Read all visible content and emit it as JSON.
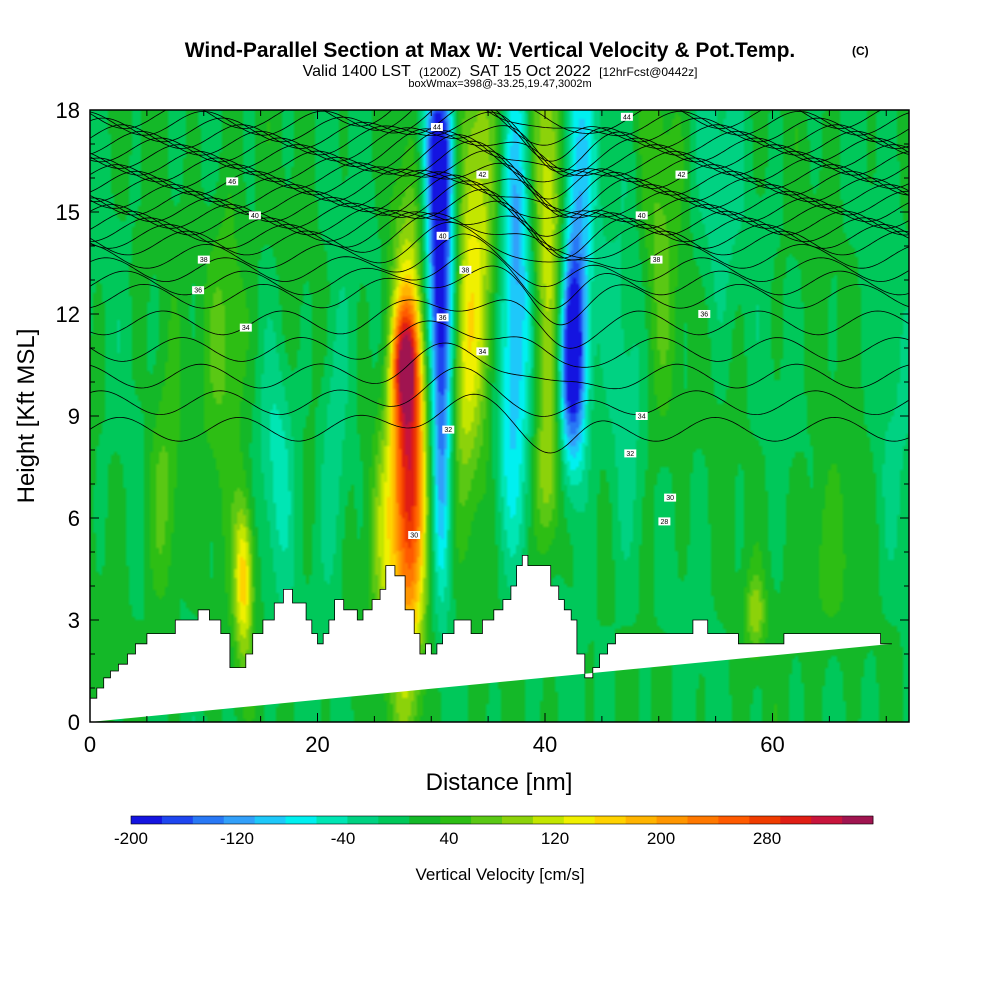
{
  "chart_data": {
    "type": "heatmap",
    "title": "Wind-Parallel Section at Max W: Vertical Velocity & Pot.Temp.",
    "title_mark": "(C)",
    "subtitle_prefix": "Valid 1400 LST",
    "subtitle_utc": "(1200Z)",
    "subtitle_date": "SAT 15 Oct 2022",
    "subtitle_fcst": "[12hrFcst@0442z]",
    "subtitle2": "boxWmax=398@-33.25,19.47,3002m",
    "xlabel": "Distance [nm]",
    "ylabel": "Height [Kft MSL]",
    "xlim": [
      0,
      72
    ],
    "ylim": [
      0,
      18
    ],
    "xticks": [
      "0",
      "20",
      "40",
      "60"
    ],
    "xtick_values": [
      0,
      20,
      40,
      60
    ],
    "yticks": [
      "0",
      "3",
      "6",
      "9",
      "12",
      "15",
      "18"
    ],
    "ytick_values": [
      0,
      3,
      6,
      9,
      12,
      15,
      18
    ],
    "colorbar": {
      "label": "Vertical Velocity [cm/s]",
      "min": -200,
      "max": 360,
      "tick_labels": [
        "-200",
        "-120",
        "-40",
        "40",
        "120",
        "200",
        "280"
      ],
      "tick_values": [
        -200,
        -120,
        -40,
        40,
        120,
        200,
        280
      ],
      "colors": [
        "#1414e0",
        "#1e46f0",
        "#2878f5",
        "#32a0fa",
        "#1ec8fa",
        "#00f0f0",
        "#00e6b4",
        "#00d282",
        "#00c85a",
        "#14b828",
        "#2dbe14",
        "#5ac814",
        "#8cd20a",
        "#c3e600",
        "#f0f000",
        "#ffd200",
        "#ffb400",
        "#ff9600",
        "#ff7800",
        "#ff5a00",
        "#f03c00",
        "#e01e14",
        "#c8143c",
        "#a01450"
      ]
    },
    "terrain": {
      "x": [
        0,
        0.6,
        0.6,
        1.2,
        1.2,
        1.8,
        1.8,
        2.5,
        2.5,
        3.3,
        3.3,
        4,
        4,
        5,
        5,
        6,
        6,
        7.5,
        7.5,
        9.5,
        9.5,
        10.5,
        10.5,
        11.5,
        11.5,
        12.3,
        12.3,
        13.7,
        13.7,
        14.3,
        14.3,
        15.2,
        15.2,
        16.2,
        16.2,
        17,
        17,
        17.8,
        17.8,
        19,
        19,
        19.5,
        19.5,
        20,
        20,
        20.5,
        20.5,
        21,
        21,
        21.5,
        21.5,
        22.3,
        22.3,
        23.5,
        23.5,
        24,
        24,
        24.8,
        24.8,
        25.5,
        25.5,
        26,
        26,
        26.8,
        26.8,
        27.7,
        27.7,
        28.5,
        28.5,
        29,
        29,
        29.5,
        29.5,
        30,
        30,
        30.5,
        30.5,
        31,
        31,
        31.5,
        31.5,
        32,
        32,
        33,
        33,
        33.5,
        33.5,
        34.5,
        34.5,
        35.5,
        35.5,
        36.3,
        36.3,
        37,
        37,
        37.5,
        37.5,
        38,
        38,
        38.5,
        38.5,
        40.5,
        40.5,
        41.2,
        41.2,
        41.7,
        41.7,
        42.3,
        42.3,
        42.8,
        42.8,
        43.5,
        43.5,
        44.2,
        44.2,
        44.8,
        44.8,
        45.5,
        45.5,
        46.2,
        46.2,
        48,
        48,
        53,
        53,
        54.3,
        54.3,
        55.5,
        55.5,
        57,
        57,
        58.5,
        58.5,
        61,
        61,
        66,
        66,
        69.5,
        69.5,
        70.5,
        70.5,
        72
      ],
      "y": [
        0.7,
        0.7,
        1,
        1,
        1.3,
        1.3,
        1.5,
        1.5,
        1.7,
        1.7,
        2,
        2,
        2.3,
        2.3,
        2.6,
        2.6,
        2.6,
        2.6,
        3,
        3,
        3.3,
        3.3,
        3,
        3,
        2.6,
        2.6,
        1.6,
        1.6,
        2,
        2,
        2.6,
        2.6,
        3,
        3,
        3.5,
        3.5,
        3.9,
        3.9,
        3.5,
        3.5,
        3,
        3,
        2.6,
        2.6,
        2.3,
        2.3,
        2.6,
        2.6,
        3,
        3,
        3.6,
        3.6,
        3.3,
        3.3,
        3,
        3,
        3.3,
        3.3,
        3.6,
        3.6,
        3.9,
        3.9,
        4.6,
        4.6,
        4.3,
        4.3,
        3.3,
        3.3,
        2.6,
        2.6,
        2,
        2,
        2.3,
        2.3,
        2,
        2,
        2.3,
        2.3,
        2.6,
        2.6,
        2.6,
        2.6,
        3,
        3,
        3,
        3,
        2.6,
        2.6,
        3,
        3,
        3.3,
        3.3,
        3.6,
        3.6,
        4,
        4,
        4.6,
        4.6,
        4.9,
        4.9,
        4.6,
        4.6,
        4,
        4,
        3.6,
        3.6,
        3.3,
        3.3,
        3,
        3,
        2,
        2,
        1.3,
        1.3,
        1.6,
        1.6,
        2,
        2,
        2.3,
        2.3,
        2.6,
        2.6,
        2.6,
        2.6,
        3,
        3,
        2.6,
        2.6,
        2.6,
        2.6,
        2.3,
        2.3,
        2.3,
        2.3,
        2.6,
        2.6,
        2.6,
        2.6,
        2.3,
        2.3,
        2.3
      ]
    },
    "w_features": [
      {
        "x": 28,
        "y": 7.5,
        "sx": 1.1,
        "sy": 4.2,
        "amp": 310
      },
      {
        "x": 27.7,
        "y": 10.6,
        "sx": 0.8,
        "sy": 1.1,
        "amp": 160
      },
      {
        "x": 25.8,
        "y": 5.6,
        "sx": 0.9,
        "sy": 2.5,
        "amp": 70
      },
      {
        "x": 30.8,
        "y": 13.1,
        "sx": 0.9,
        "sy": 3.0,
        "amp": -230
      },
      {
        "x": 30.9,
        "y": 7.5,
        "sx": 0.6,
        "sy": 2.8,
        "amp": -110
      },
      {
        "x": 30.6,
        "y": 17.0,
        "sx": 1.0,
        "sy": 1.5,
        "amp": -140
      },
      {
        "x": 34.0,
        "y": 14.5,
        "sx": 1.4,
        "sy": 4.5,
        "amp": 120
      },
      {
        "x": 32.8,
        "y": 10.5,
        "sx": 0.8,
        "sy": 2.5,
        "amp": 70
      },
      {
        "x": 37.5,
        "y": 14.0,
        "sx": 1.0,
        "sy": 4.5,
        "amp": -130
      },
      {
        "x": 40.5,
        "y": 15.0,
        "sx": 1.2,
        "sy": 4.0,
        "amp": 120
      },
      {
        "x": 40.2,
        "y": 7.3,
        "sx": 0.8,
        "sy": 1.8,
        "amp": 90
      },
      {
        "x": 42.4,
        "y": 10.6,
        "sx": 0.85,
        "sy": 2.2,
        "amp": -230
      },
      {
        "x": 42.7,
        "y": 15.5,
        "sx": 1.1,
        "sy": 3.5,
        "amp": -120
      },
      {
        "x": 13.5,
        "y": 4.2,
        "sx": 0.6,
        "sy": 1.6,
        "amp": 150
      },
      {
        "x": 16.5,
        "y": 7.5,
        "sx": 1.0,
        "sy": 2.5,
        "amp": -50
      },
      {
        "x": 6.5,
        "y": 6.5,
        "sx": 1.0,
        "sy": 2.5,
        "amp": 60
      },
      {
        "x": 12.0,
        "y": 11.5,
        "sx": 1.3,
        "sy": 3.0,
        "amp": 60
      },
      {
        "x": 21.5,
        "y": 8.0,
        "sx": 0.9,
        "sy": 3.0,
        "amp": -50
      },
      {
        "x": 36.5,
        "y": 7.5,
        "sx": 1.0,
        "sy": 2.5,
        "amp": -45
      },
      {
        "x": 47.0,
        "y": 9.0,
        "sx": 1.5,
        "sy": 4.0,
        "amp": -35
      },
      {
        "x": 50.0,
        "y": 13.0,
        "sx": 1.2,
        "sy": 4.0,
        "amp": 55
      },
      {
        "x": 55.0,
        "y": 15.5,
        "sx": 1.5,
        "sy": 3.0,
        "amp": -35
      },
      {
        "x": 58.5,
        "y": 3.2,
        "sx": 0.6,
        "sy": 0.8,
        "amp": 80
      },
      {
        "x": 64.5,
        "y": 4.5,
        "sx": 2.0,
        "sy": 2.0,
        "amp": 40
      },
      {
        "x": 70.5,
        "y": 7.0,
        "sx": 1.5,
        "sy": 3.0,
        "amp": -25
      }
    ],
    "theta_contours": {
      "bases": [
        22,
        24,
        26,
        28,
        30,
        32,
        33,
        34,
        35,
        36,
        36.5,
        37,
        37.5,
        38,
        38.5,
        39,
        39.5,
        40,
        40.5,
        41,
        41.5,
        42,
        42.5,
        43,
        43.5,
        44,
        44.5,
        45,
        45.5
      ],
      "labels": [
        {
          "text": "46",
          "x": 12.5,
          "y": 15.9
        },
        {
          "text": "40",
          "x": 14.5,
          "y": 14.9
        },
        {
          "text": "38",
          "x": 10.0,
          "y": 13.6
        },
        {
          "text": "36",
          "x": 9.5,
          "y": 12.7
        },
        {
          "text": "34",
          "x": 13.7,
          "y": 11.6
        },
        {
          "text": "44",
          "x": 30.5,
          "y": 17.5
        },
        {
          "text": "42",
          "x": 34.5,
          "y": 16.1
        },
        {
          "text": "40",
          "x": 31.0,
          "y": 14.3
        },
        {
          "text": "38",
          "x": 33.0,
          "y": 13.3
        },
        {
          "text": "36",
          "x": 31.0,
          "y": 11.9
        },
        {
          "text": "34",
          "x": 34.5,
          "y": 10.9
        },
        {
          "text": "32",
          "x": 31.5,
          "y": 8.6
        },
        {
          "text": "30",
          "x": 28.5,
          "y": 5.5
        },
        {
          "text": "44",
          "x": 47.2,
          "y": 17.8
        },
        {
          "text": "42",
          "x": 52.0,
          "y": 16.1
        },
        {
          "text": "40",
          "x": 48.5,
          "y": 14.9
        },
        {
          "text": "38",
          "x": 49.8,
          "y": 13.6
        },
        {
          "text": "36",
          "x": 54.0,
          "y": 12.0
        },
        {
          "text": "34",
          "x": 48.5,
          "y": 9.0
        },
        {
          "text": "32",
          "x": 47.5,
          "y": 7.9
        },
        {
          "text": "30",
          "x": 51.0,
          "y": 6.6
        },
        {
          "text": "28",
          "x": 50.5,
          "y": 5.9
        }
      ]
    }
  }
}
